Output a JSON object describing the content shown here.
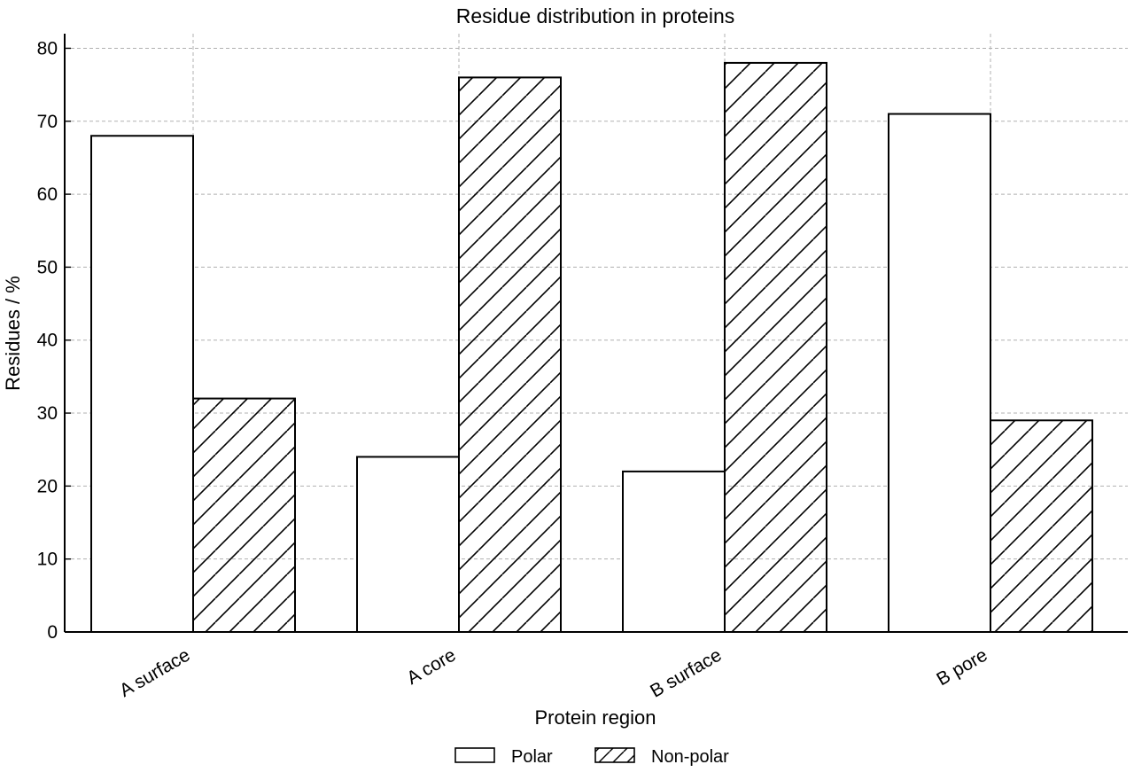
{
  "chart_data": {
    "type": "bar",
    "title": "Residue distribution in proteins",
    "xlabel": "Protein region",
    "ylabel": "Residues / %",
    "categories": [
      "A surface",
      "A core",
      "B surface",
      "B pore"
    ],
    "series": [
      {
        "name": "Polar",
        "values": [
          68,
          24,
          22,
          71
        ],
        "pattern": "none"
      },
      {
        "name": "Non-polar",
        "values": [
          32,
          76,
          78,
          29
        ],
        "pattern": "diagonal-hatch"
      }
    ],
    "ylim": [
      0,
      82
    ],
    "yticks": [
      0,
      10,
      20,
      30,
      40,
      50,
      60,
      70,
      80
    ],
    "grid": true,
    "legend_position": "bottom-center",
    "colors": {
      "bar_fill": "#ffffff",
      "bar_edge": "#000000",
      "grid": "#b0b0b0"
    }
  }
}
